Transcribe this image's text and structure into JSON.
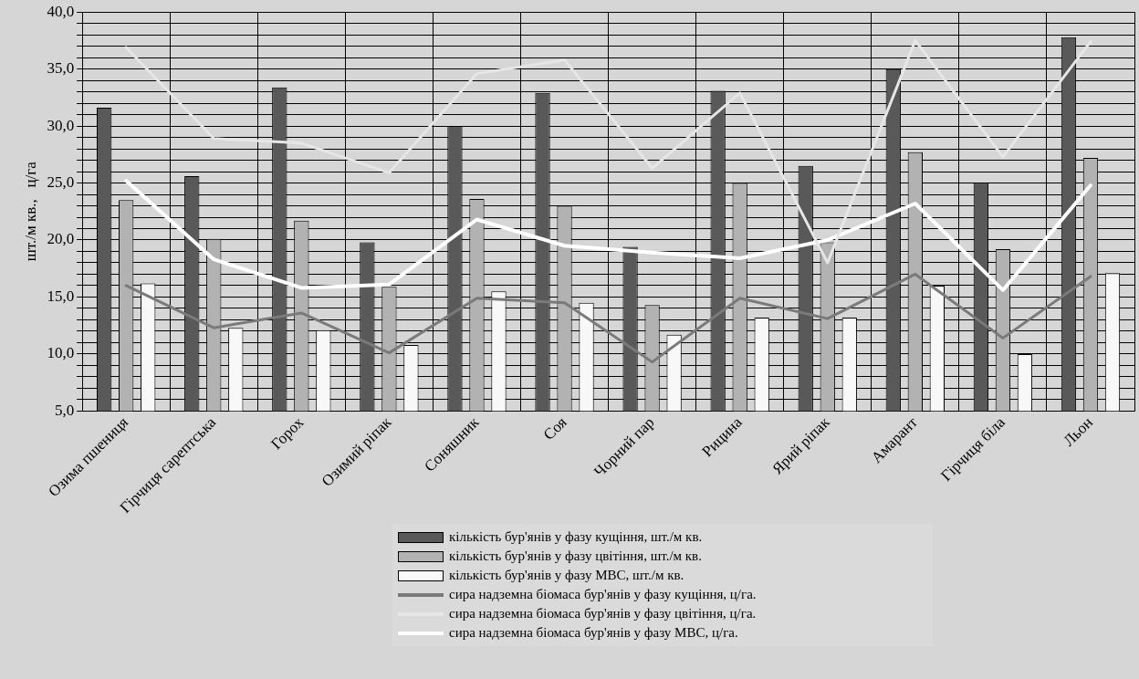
{
  "chart_data": {
    "type": "bar",
    "ylabel": "шт./м кв.,   ц/га",
    "categories": [
      "Озима пшениця",
      "Гірчиця сарептська",
      "Горох",
      "Озимий ріпак",
      "Соняшник",
      "Соя",
      "Чорний пар",
      "Рицина",
      "Ярий ріпак",
      "Амарант",
      "Гірчиця біла",
      "Льон"
    ],
    "series": [
      {
        "name": "кількість бур'янів у фазу кущіння, шт./м кв.",
        "color": "#595959",
        "values": [
          31.6,
          25.6,
          33.4,
          19.8,
          30.0,
          32.9,
          19.4,
          33.1,
          26.5,
          35.0,
          25.0,
          37.8
        ]
      },
      {
        "name": "кількість бур'янів у фазу цвітіння, шт./м кв.",
        "color": "#b2b2b2",
        "values": [
          23.5,
          20.1,
          21.7,
          15.9,
          23.6,
          23.0,
          14.3,
          25.0,
          19.8,
          27.7,
          19.2,
          27.2
        ]
      },
      {
        "name": "кількість бур'янів у фазу МВС, шт./м кв.",
        "color": "#f8f8f8",
        "values": [
          16.2,
          12.3,
          12.1,
          10.8,
          15.5,
          14.5,
          11.7,
          13.2,
          13.2,
          16.0,
          10.0,
          17.1
        ]
      },
      {
        "name": "сира надземна біомаса бур'янів у фазу кущіння, ц/га.",
        "type": "line",
        "color": "#7a7a7a",
        "values": [
          16.0,
          12.3,
          13.6,
          10.1,
          14.9,
          14.5,
          9.3,
          14.9,
          13.1,
          17.0,
          11.4,
          16.8
        ]
      },
      {
        "name": "сира надземна біомаса бур'янів у фазу цвітіння, ц/га.",
        "type": "line",
        "color": "#e6e6e6",
        "values": [
          36.9,
          28.9,
          28.5,
          25.9,
          34.6,
          35.8,
          26.3,
          32.9,
          18.0,
          37.5,
          27.3,
          37.4
        ]
      },
      {
        "name": "сира надземна біомаса бур'янів у фазу МВС, ц/га.",
        "type": "line",
        "color": "#ffffff",
        "values": [
          25.2,
          18.3,
          15.8,
          16.1,
          21.8,
          19.5,
          18.9,
          18.4,
          20.0,
          23.2,
          15.6,
          24.8
        ]
      }
    ],
    "ylim": [
      5,
      40
    ],
    "yticks": [
      {
        "value": 5,
        "label": "5,0"
      },
      {
        "value": 6,
        "label": null
      },
      {
        "value": 7,
        "label": null
      },
      {
        "value": 8,
        "label": null
      },
      {
        "value": 9,
        "label": null
      },
      {
        "value": 10,
        "label": "10,0"
      },
      {
        "value": 11,
        "label": null
      },
      {
        "value": 12,
        "label": null
      },
      {
        "value": 13,
        "label": null
      },
      {
        "value": 14,
        "label": null
      },
      {
        "value": 15,
        "label": "15,0"
      },
      {
        "value": 16,
        "label": null
      },
      {
        "value": 17,
        "label": null
      },
      {
        "value": 18,
        "label": null
      },
      {
        "value": 19,
        "label": null
      },
      {
        "value": 20,
        "label": "20,0"
      },
      {
        "value": 21,
        "label": null
      },
      {
        "value": 22,
        "label": null
      },
      {
        "value": 23,
        "label": null
      },
      {
        "value": 24,
        "label": null
      },
      {
        "value": 25,
        "label": "25,0"
      },
      {
        "value": 26,
        "label": null
      },
      {
        "value": 27,
        "label": null
      },
      {
        "value": 28,
        "label": null
      },
      {
        "value": 29,
        "label": null
      },
      {
        "value": 30,
        "label": "30,0"
      },
      {
        "value": 31,
        "label": null
      },
      {
        "value": 32,
        "label": null
      },
      {
        "value": 33,
        "label": null
      },
      {
        "value": 34,
        "label": null
      },
      {
        "value": 35,
        "label": "35,0"
      },
      {
        "value": 36,
        "label": null
      },
      {
        "value": 37,
        "label": null
      },
      {
        "value": 38,
        "label": null
      },
      {
        "value": 39,
        "label": null
      },
      {
        "value": 40,
        "label": "40,0"
      }
    ],
    "grid": true,
    "legend": "bottom",
    "marker": "none",
    "line_style": "solid"
  }
}
